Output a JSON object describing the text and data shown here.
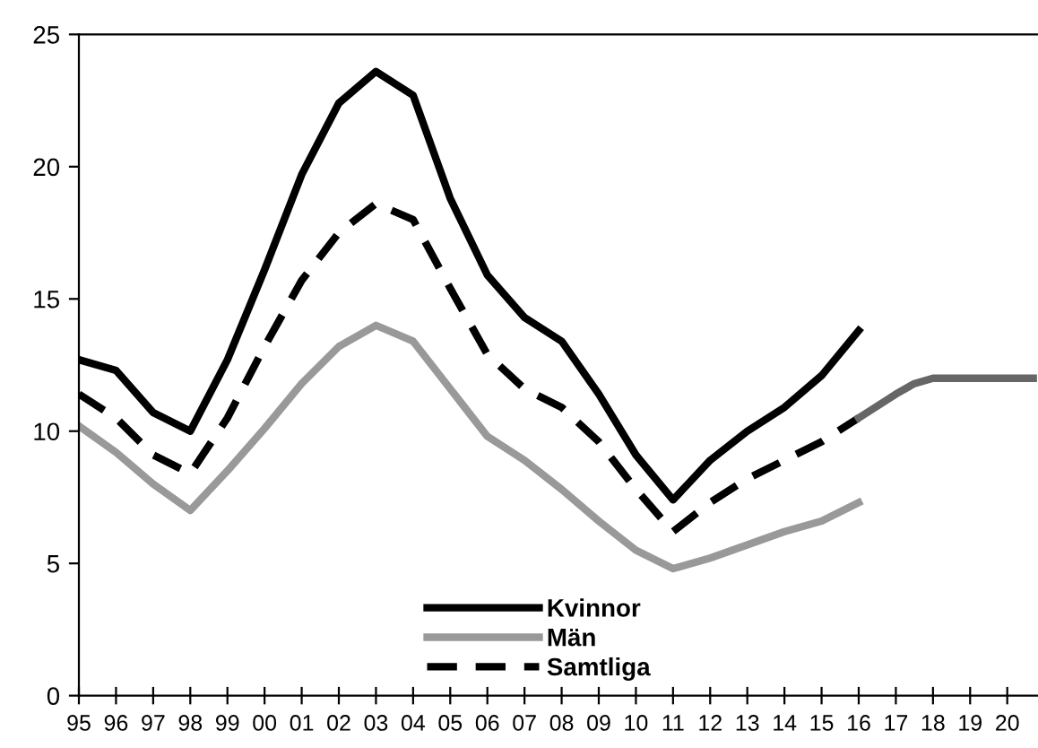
{
  "chart_data": {
    "type": "line",
    "xlim": [
      1995,
      2020.8
    ],
    "ylim": [
      0,
      25
    ],
    "yticks": [
      0,
      5,
      10,
      15,
      20,
      25
    ],
    "xticks": [
      {
        "value": 1995,
        "label": "95"
      },
      {
        "value": 1996,
        "label": "96"
      },
      {
        "value": 1997,
        "label": "97"
      },
      {
        "value": 1998,
        "label": "98"
      },
      {
        "value": 1999,
        "label": "99"
      },
      {
        "value": 2000,
        "label": "00"
      },
      {
        "value": 2001,
        "label": "01"
      },
      {
        "value": 2002,
        "label": "02"
      },
      {
        "value": 2003,
        "label": "03"
      },
      {
        "value": 2004,
        "label": "04"
      },
      {
        "value": 2005,
        "label": "05"
      },
      {
        "value": 2006,
        "label": "06"
      },
      {
        "value": 2007,
        "label": "07"
      },
      {
        "value": 2008,
        "label": "08"
      },
      {
        "value": 2009,
        "label": "09"
      },
      {
        "value": 2010,
        "label": "10"
      },
      {
        "value": 2011,
        "label": "11"
      },
      {
        "value": 2012,
        "label": "12"
      },
      {
        "value": 2013,
        "label": "13"
      },
      {
        "value": 2014,
        "label": "14"
      },
      {
        "value": 2015,
        "label": "15"
      },
      {
        "value": 2016,
        "label": "16"
      },
      {
        "value": 2017,
        "label": "17"
      },
      {
        "value": 2018,
        "label": "18"
      },
      {
        "value": 2019,
        "label": "19"
      },
      {
        "value": 2020,
        "label": "20"
      }
    ],
    "grid": false,
    "legend": "bottom",
    "marker": "none",
    "series": [
      {
        "name": "Kvinnor",
        "color": "#000000",
        "line_style": "solid",
        "x": [
          1995,
          1996,
          1997,
          1998,
          1999,
          2000,
          2001,
          2002,
          2003,
          2004,
          2005,
          2006,
          2007,
          2008,
          2009,
          2010,
          2011,
          2012,
          2013,
          2014,
          2015,
          2016
        ],
        "values": [
          12.7,
          12.3,
          10.7,
          10.0,
          12.7,
          16.1,
          19.7,
          22.4,
          23.6,
          22.7,
          18.8,
          15.9,
          14.3,
          13.4,
          11.4,
          9.1,
          7.4,
          8.9,
          10.0,
          10.9,
          12.1,
          13.8
        ]
      },
      {
        "name": "Män",
        "color": "#999999",
        "line_style": "solid",
        "x": [
          1995,
          1996,
          1997,
          1998,
          1999,
          2000,
          2001,
          2002,
          2003,
          2004,
          2005,
          2006,
          2007,
          2008,
          2009,
          2010,
          2011,
          2012,
          2013,
          2014,
          2015,
          2016
        ],
        "values": [
          10.2,
          9.2,
          8.0,
          7.0,
          8.5,
          10.1,
          11.8,
          13.2,
          14.0,
          13.4,
          11.6,
          9.8,
          8.9,
          7.8,
          6.6,
          5.5,
          4.8,
          5.2,
          5.7,
          6.2,
          6.6,
          7.3
        ]
      },
      {
        "name": "Samtliga",
        "color": "#000000",
        "line_style": "dashed",
        "x": [
          1995,
          1996,
          1997,
          1998,
          1999,
          2000,
          2001,
          2002,
          2003,
          2004,
          2005,
          2006,
          2007,
          2008,
          2009,
          2010,
          2011,
          2012,
          2013,
          2014,
          2015,
          2016
        ],
        "values": [
          11.4,
          10.5,
          9.1,
          8.4,
          10.5,
          13.2,
          15.7,
          17.5,
          18.6,
          18.0,
          15.4,
          12.9,
          11.6,
          10.9,
          9.6,
          7.8,
          6.2,
          7.3,
          8.2,
          8.9,
          9.6,
          10.5
        ]
      },
      {
        "color": "#666666",
        "line_style": "solid",
        "x": [
          2016,
          2017,
          2017.5,
          2018,
          2019,
          2020,
          2020.8
        ],
        "values": [
          10.5,
          11.4,
          11.8,
          12.0,
          12.0,
          12.0,
          12.0
        ]
      }
    ]
  }
}
